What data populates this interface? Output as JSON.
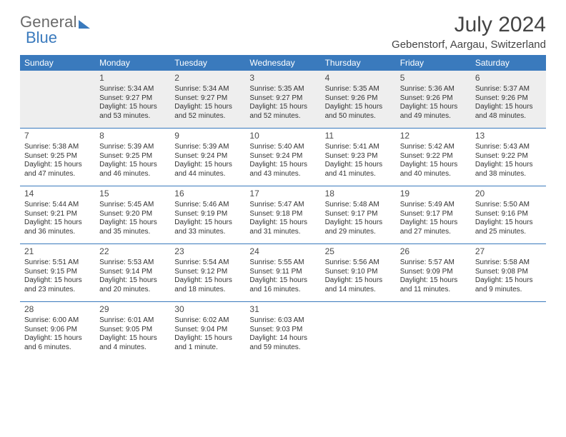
{
  "brand": {
    "part1": "General",
    "part2": "Blue"
  },
  "title": "July 2024",
  "location": "Gebenstorf, Aargau, Switzerland",
  "colors": {
    "header_bg": "#3a7abd",
    "header_text": "#ffffff",
    "page_bg": "#ffffff",
    "text": "#333333",
    "firstweek_bg": "#eeeeee",
    "rule": "#3a7abd"
  },
  "typography": {
    "title_fontsize_pt": 22,
    "location_fontsize_pt": 11,
    "dayheader_fontsize_pt": 9,
    "cell_fontsize_pt": 7.5
  },
  "day_headers": [
    "Sunday",
    "Monday",
    "Tuesday",
    "Wednesday",
    "Thursday",
    "Friday",
    "Saturday"
  ],
  "weeks": [
    [
      null,
      {
        "n": "1",
        "sr": "Sunrise: 5:34 AM",
        "ss": "Sunset: 9:27 PM",
        "d1": "Daylight: 15 hours",
        "d2": "and 53 minutes."
      },
      {
        "n": "2",
        "sr": "Sunrise: 5:34 AM",
        "ss": "Sunset: 9:27 PM",
        "d1": "Daylight: 15 hours",
        "d2": "and 52 minutes."
      },
      {
        "n": "3",
        "sr": "Sunrise: 5:35 AM",
        "ss": "Sunset: 9:27 PM",
        "d1": "Daylight: 15 hours",
        "d2": "and 52 minutes."
      },
      {
        "n": "4",
        "sr": "Sunrise: 5:35 AM",
        "ss": "Sunset: 9:26 PM",
        "d1": "Daylight: 15 hours",
        "d2": "and 50 minutes."
      },
      {
        "n": "5",
        "sr": "Sunrise: 5:36 AM",
        "ss": "Sunset: 9:26 PM",
        "d1": "Daylight: 15 hours",
        "d2": "and 49 minutes."
      },
      {
        "n": "6",
        "sr": "Sunrise: 5:37 AM",
        "ss": "Sunset: 9:26 PM",
        "d1": "Daylight: 15 hours",
        "d2": "and 48 minutes."
      }
    ],
    [
      {
        "n": "7",
        "sr": "Sunrise: 5:38 AM",
        "ss": "Sunset: 9:25 PM",
        "d1": "Daylight: 15 hours",
        "d2": "and 47 minutes."
      },
      {
        "n": "8",
        "sr": "Sunrise: 5:39 AM",
        "ss": "Sunset: 9:25 PM",
        "d1": "Daylight: 15 hours",
        "d2": "and 46 minutes."
      },
      {
        "n": "9",
        "sr": "Sunrise: 5:39 AM",
        "ss": "Sunset: 9:24 PM",
        "d1": "Daylight: 15 hours",
        "d2": "and 44 minutes."
      },
      {
        "n": "10",
        "sr": "Sunrise: 5:40 AM",
        "ss": "Sunset: 9:24 PM",
        "d1": "Daylight: 15 hours",
        "d2": "and 43 minutes."
      },
      {
        "n": "11",
        "sr": "Sunrise: 5:41 AM",
        "ss": "Sunset: 9:23 PM",
        "d1": "Daylight: 15 hours",
        "d2": "and 41 minutes."
      },
      {
        "n": "12",
        "sr": "Sunrise: 5:42 AM",
        "ss": "Sunset: 9:22 PM",
        "d1": "Daylight: 15 hours",
        "d2": "and 40 minutes."
      },
      {
        "n": "13",
        "sr": "Sunrise: 5:43 AM",
        "ss": "Sunset: 9:22 PM",
        "d1": "Daylight: 15 hours",
        "d2": "and 38 minutes."
      }
    ],
    [
      {
        "n": "14",
        "sr": "Sunrise: 5:44 AM",
        "ss": "Sunset: 9:21 PM",
        "d1": "Daylight: 15 hours",
        "d2": "and 36 minutes."
      },
      {
        "n": "15",
        "sr": "Sunrise: 5:45 AM",
        "ss": "Sunset: 9:20 PM",
        "d1": "Daylight: 15 hours",
        "d2": "and 35 minutes."
      },
      {
        "n": "16",
        "sr": "Sunrise: 5:46 AM",
        "ss": "Sunset: 9:19 PM",
        "d1": "Daylight: 15 hours",
        "d2": "and 33 minutes."
      },
      {
        "n": "17",
        "sr": "Sunrise: 5:47 AM",
        "ss": "Sunset: 9:18 PM",
        "d1": "Daylight: 15 hours",
        "d2": "and 31 minutes."
      },
      {
        "n": "18",
        "sr": "Sunrise: 5:48 AM",
        "ss": "Sunset: 9:17 PM",
        "d1": "Daylight: 15 hours",
        "d2": "and 29 minutes."
      },
      {
        "n": "19",
        "sr": "Sunrise: 5:49 AM",
        "ss": "Sunset: 9:17 PM",
        "d1": "Daylight: 15 hours",
        "d2": "and 27 minutes."
      },
      {
        "n": "20",
        "sr": "Sunrise: 5:50 AM",
        "ss": "Sunset: 9:16 PM",
        "d1": "Daylight: 15 hours",
        "d2": "and 25 minutes."
      }
    ],
    [
      {
        "n": "21",
        "sr": "Sunrise: 5:51 AM",
        "ss": "Sunset: 9:15 PM",
        "d1": "Daylight: 15 hours",
        "d2": "and 23 minutes."
      },
      {
        "n": "22",
        "sr": "Sunrise: 5:53 AM",
        "ss": "Sunset: 9:14 PM",
        "d1": "Daylight: 15 hours",
        "d2": "and 20 minutes."
      },
      {
        "n": "23",
        "sr": "Sunrise: 5:54 AM",
        "ss": "Sunset: 9:12 PM",
        "d1": "Daylight: 15 hours",
        "d2": "and 18 minutes."
      },
      {
        "n": "24",
        "sr": "Sunrise: 5:55 AM",
        "ss": "Sunset: 9:11 PM",
        "d1": "Daylight: 15 hours",
        "d2": "and 16 minutes."
      },
      {
        "n": "25",
        "sr": "Sunrise: 5:56 AM",
        "ss": "Sunset: 9:10 PM",
        "d1": "Daylight: 15 hours",
        "d2": "and 14 minutes."
      },
      {
        "n": "26",
        "sr": "Sunrise: 5:57 AM",
        "ss": "Sunset: 9:09 PM",
        "d1": "Daylight: 15 hours",
        "d2": "and 11 minutes."
      },
      {
        "n": "27",
        "sr": "Sunrise: 5:58 AM",
        "ss": "Sunset: 9:08 PM",
        "d1": "Daylight: 15 hours",
        "d2": "and 9 minutes."
      }
    ],
    [
      {
        "n": "28",
        "sr": "Sunrise: 6:00 AM",
        "ss": "Sunset: 9:06 PM",
        "d1": "Daylight: 15 hours",
        "d2": "and 6 minutes."
      },
      {
        "n": "29",
        "sr": "Sunrise: 6:01 AM",
        "ss": "Sunset: 9:05 PM",
        "d1": "Daylight: 15 hours",
        "d2": "and 4 minutes."
      },
      {
        "n": "30",
        "sr": "Sunrise: 6:02 AM",
        "ss": "Sunset: 9:04 PM",
        "d1": "Daylight: 15 hours",
        "d2": "and 1 minute."
      },
      {
        "n": "31",
        "sr": "Sunrise: 6:03 AM",
        "ss": "Sunset: 9:03 PM",
        "d1": "Daylight: 14 hours",
        "d2": "and 59 minutes."
      },
      null,
      null,
      null
    ]
  ]
}
